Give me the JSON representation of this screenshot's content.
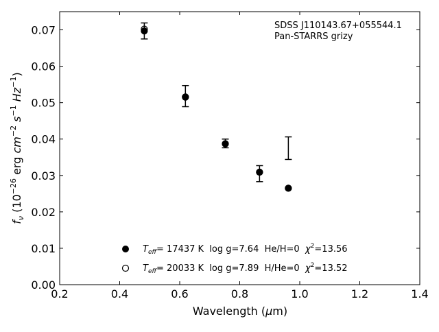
{
  "chart_data": {
    "type": "scatter",
    "xlim": [
      0.2,
      1.4
    ],
    "ylim": [
      0.0,
      0.075
    ],
    "x_ticks": [
      "0.2",
      "0.4",
      "0.6",
      "0.8",
      "1.0",
      "1.2",
      "1.4"
    ],
    "y_ticks": [
      "0.00",
      "0.01",
      "0.02",
      "0.03",
      "0.04",
      "0.05",
      "0.06",
      "0.07"
    ],
    "x_tick_values": [
      0.2,
      0.4,
      0.6,
      0.8,
      1.0,
      1.2,
      1.4
    ],
    "y_tick_values": [
      0.0,
      0.01,
      0.02,
      0.03,
      0.04,
      0.05,
      0.06,
      0.07
    ],
    "xlabel_prefix": "Wavelength (",
    "xlabel_mu": "μ",
    "xlabel_suffix": "m)",
    "ylabel": {
      "f": "f",
      "nu": "ν",
      "open": " (10",
      "exp1": "−26",
      "erg": " erg ",
      "cm": "cm",
      "exp2": "−2",
      "s": " s",
      "exp3": "−1",
      "hz": " Hz",
      "exp4": "−1",
      "close": ")"
    },
    "annotation": [
      "SDSS J110143.67+055544.1",
      "Pan-STARRS grizy"
    ],
    "observed": {
      "x": [
        0.482,
        0.619,
        0.752,
        0.866,
        0.962
      ],
      "y": [
        0.0697,
        0.0518,
        0.0388,
        0.0305,
        0.0375
      ],
      "yerr": [
        0.0022,
        0.0029,
        0.0012,
        0.0022,
        0.0031
      ]
    },
    "series": [
      {
        "marker": "filled",
        "x": [
          0.482,
          0.619,
          0.752,
          0.866,
          0.962
        ],
        "y": [
          0.0697,
          0.0515,
          0.0387,
          0.0309,
          0.0265
        ],
        "legend": {
          "teff_sub": "eff",
          "teff_val": "= 17437 K  log g=7.64  He/H=0  ",
          "chi": "χ",
          "chi_sup": "2",
          "chi_val": "=13.56"
        }
      },
      {
        "marker": "open",
        "x": [
          0.482,
          0.619,
          0.752,
          0.866,
          0.962
        ],
        "y": [
          0.0702,
          0.0516,
          0.0387,
          0.0309,
          0.0265
        ],
        "legend": {
          "teff_sub": "eff",
          "teff_val": "= 20033 K  log g=7.89  H/He=0  ",
          "chi": "χ",
          "chi_sup": "2",
          "chi_val": "=13.52"
        }
      }
    ],
    "grid": false,
    "legend_position": "lower-center"
  }
}
